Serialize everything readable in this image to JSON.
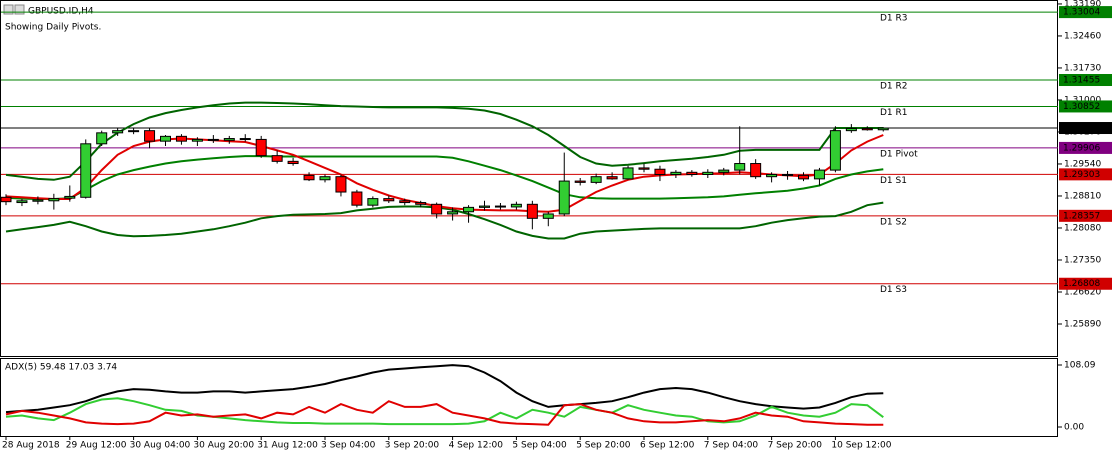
{
  "chart_data": [
    {
      "type": "candlestick",
      "title": "GBPUSD.ID,H4",
      "subtitle": "Showing Daily Pivots.",
      "up_color": "#32cd32",
      "down_color": "#ff0000",
      "candles": [
        [
          1.2878,
          1.2885,
          1.286,
          1.2868
        ],
        [
          1.2866,
          1.2874,
          1.2858,
          1.287
        ],
        [
          1.2869,
          1.288,
          1.2862,
          1.2872
        ],
        [
          1.287,
          1.2886,
          1.285,
          1.2875
        ],
        [
          1.2876,
          1.2905,
          1.2868,
          1.288
        ],
        [
          1.2878,
          1.301,
          1.2875,
          1.3
        ],
        [
          1.3,
          1.303,
          1.2995,
          1.3025
        ],
        [
          1.3025,
          1.3035,
          1.3018,
          1.303
        ],
        [
          1.3028,
          1.3036,
          1.3022,
          1.303
        ],
        [
          1.303,
          1.3035,
          1.299,
          1.3006
        ],
        [
          1.3006,
          1.302,
          1.2995,
          1.3017
        ],
        [
          1.3017,
          1.3022,
          1.2998,
          1.3006
        ],
        [
          1.3006,
          1.3015,
          1.2995,
          1.301
        ],
        [
          1.301,
          1.302,
          1.3002,
          1.3008
        ],
        [
          1.3008,
          1.3018,
          1.3,
          1.3012
        ],
        [
          1.3012,
          1.3022,
          1.3005,
          1.301
        ],
        [
          1.301,
          1.3018,
          1.2968,
          1.2973
        ],
        [
          1.2973,
          1.2985,
          1.2955,
          1.296
        ],
        [
          1.296,
          1.2968,
          1.295,
          1.2955
        ],
        [
          1.2928,
          1.2935,
          1.2915,
          1.2918
        ],
        [
          1.2918,
          1.293,
          1.2912,
          1.2925
        ],
        [
          1.2925,
          1.293,
          1.288,
          1.289
        ],
        [
          1.289,
          1.2895,
          1.2855,
          1.286
        ],
        [
          1.286,
          1.288,
          1.2855,
          1.2875
        ],
        [
          1.2875,
          1.2882,
          1.2865,
          1.287
        ],
        [
          1.287,
          1.2875,
          1.286,
          1.2866
        ],
        [
          1.2866,
          1.287,
          1.2855,
          1.2862
        ],
        [
          1.2862,
          1.2866,
          1.283,
          1.284
        ],
        [
          1.284,
          1.2855,
          1.2825,
          1.2845
        ],
        [
          1.2845,
          1.286,
          1.282,
          1.2855
        ],
        [
          1.2855,
          1.287,
          1.2848,
          1.2858
        ],
        [
          1.2858,
          1.2865,
          1.285,
          1.2856
        ],
        [
          1.2856,
          1.2868,
          1.285,
          1.2862
        ],
        [
          1.2862,
          1.287,
          1.2805,
          1.283
        ],
        [
          1.283,
          1.2845,
          1.2812,
          1.284
        ],
        [
          1.284,
          1.298,
          1.2835,
          1.2915
        ],
        [
          1.2915,
          1.2922,
          1.2905,
          1.2912
        ],
        [
          1.2912,
          1.2932,
          1.2908,
          1.2925
        ],
        [
          1.2925,
          1.2935,
          1.2918,
          1.292
        ],
        [
          1.292,
          1.295,
          1.2918,
          1.2945
        ],
        [
          1.2945,
          1.2955,
          1.2935,
          1.2942
        ],
        [
          1.2942,
          1.295,
          1.2915,
          1.293
        ],
        [
          1.293,
          1.294,
          1.2922,
          1.2935
        ],
        [
          1.2935,
          1.294,
          1.2925,
          1.293
        ],
        [
          1.293,
          1.2942,
          1.2922,
          1.2935
        ],
        [
          1.2935,
          1.2945,
          1.2928,
          1.294
        ],
        [
          1.294,
          1.304,
          1.293,
          1.2955
        ],
        [
          1.2955,
          1.2965,
          1.292,
          1.2925
        ],
        [
          1.2925,
          1.2935,
          1.2912,
          1.293
        ],
        [
          1.293,
          1.2938,
          1.2918,
          1.2928
        ],
        [
          1.2928,
          1.2935,
          1.2915,
          1.292
        ],
        [
          1.292,
          1.2945,
          1.2905,
          1.294
        ],
        [
          1.294,
          1.304,
          1.2935,
          1.303
        ],
        [
          1.303,
          1.3045,
          1.3025,
          1.3035
        ],
        [
          1.3035,
          1.304,
          1.303,
          1.3032
        ],
        [
          1.3032,
          1.3038,
          1.3028,
          1.3036
        ]
      ],
      "series": [
        {
          "color": "#006400",
          "values": [
            1.2929,
            1.2925,
            1.292,
            1.2918,
            1.2925,
            1.296,
            1.3,
            1.3025,
            1.3045,
            1.306,
            1.307,
            1.3077,
            1.3083,
            1.3088,
            1.3092,
            1.3094,
            1.3094,
            1.3093,
            1.3092,
            1.309,
            1.3088,
            1.3086,
            1.3085,
            1.3084,
            1.3083,
            1.3083,
            1.3083,
            1.3083,
            1.3082,
            1.308,
            1.3076,
            1.3068,
            1.3055,
            1.304,
            1.302,
            1.2995,
            1.297,
            1.2955,
            1.295,
            1.2952,
            1.2956,
            1.296,
            1.2963,
            1.2966,
            1.297,
            1.2975,
            1.2984,
            1.2986,
            1.2986,
            1.2986,
            1.2986,
            1.2986,
            1.3036,
            1.3036,
            1.3036,
            1.3036
          ]
        },
        {
          "color": "#008000",
          "values": [
            1.2877,
            1.2875,
            1.2874,
            1.2874,
            1.2876,
            1.2895,
            1.2915,
            1.293,
            1.294,
            1.2948,
            1.2955,
            1.296,
            1.2964,
            1.2967,
            1.297,
            1.2972,
            1.2972,
            1.2971,
            1.2971,
            1.2971,
            1.2971,
            1.2971,
            1.2971,
            1.2971,
            1.2971,
            1.2971,
            1.2971,
            1.2971,
            1.2968,
            1.296,
            1.295,
            1.294,
            1.2928,
            1.2915,
            1.29,
            1.2885,
            1.2878,
            1.2876,
            1.2875,
            1.2875,
            1.2875,
            1.2875,
            1.2876,
            1.2877,
            1.2878,
            1.288,
            1.2884,
            1.2887,
            1.289,
            1.2893,
            1.2898,
            1.2905,
            1.292,
            1.293,
            1.2937,
            1.2942
          ]
        },
        {
          "color": "#006400",
          "values": [
            1.28,
            1.2805,
            1.281,
            1.2815,
            1.2822,
            1.2812,
            1.28,
            1.2792,
            1.2789,
            1.279,
            1.2792,
            1.2795,
            1.28,
            1.2805,
            1.2812,
            1.282,
            1.283,
            1.2835,
            1.2838,
            1.2839,
            1.284,
            1.2842,
            1.2848,
            1.2852,
            1.2856,
            1.2857,
            1.2857,
            1.2855,
            1.285,
            1.284,
            1.2828,
            1.2815,
            1.28,
            1.279,
            1.2784,
            1.2784,
            1.2795,
            1.28,
            1.2802,
            1.2804,
            1.2806,
            1.2807,
            1.2807,
            1.2807,
            1.2807,
            1.2807,
            1.2807,
            1.2812,
            1.282,
            1.2826,
            1.283,
            1.2834,
            1.2835,
            1.2845,
            1.286,
            1.2866
          ]
        },
        {
          "color": "#e00000",
          "values": [
            1.288,
            1.2878,
            1.2876,
            1.2874,
            1.2874,
            1.29,
            1.294,
            1.2975,
            1.2995,
            1.3005,
            1.301,
            1.3012,
            1.301,
            1.3008,
            1.3006,
            1.3004,
            1.2995,
            1.2985,
            1.2975,
            1.296,
            1.2945,
            1.293,
            1.291,
            1.2895,
            1.2882,
            1.2872,
            1.2865,
            1.2858,
            1.2853,
            1.285,
            1.2849,
            1.2848,
            1.2848,
            1.2846,
            1.2845,
            1.285,
            1.287,
            1.289,
            1.2905,
            1.2918,
            1.2925,
            1.2928,
            1.293,
            1.2931,
            1.2932,
            1.2933,
            1.2935,
            1.2933,
            1.293,
            1.2928,
            1.2926,
            1.293,
            1.2955,
            1.2985,
            1.3005,
            1.302
          ]
        }
      ],
      "pivots": [
        {
          "name": "D1 R3",
          "value": 1.33004,
          "color": "#008000"
        },
        {
          "name": "D1 R2",
          "value": 1.31455,
          "color": "#008000"
        },
        {
          "name": "D1 R1",
          "value": 1.30852,
          "color": "#008000"
        },
        {
          "name": "D1 Pivot",
          "value": 1.29906,
          "color": "#800080"
        },
        {
          "name": "D1 S1",
          "value": 1.29303,
          "color": "#d00000"
        },
        {
          "name": "D1 S2",
          "value": 1.28357,
          "color": "#d00000"
        },
        {
          "name": "D1 S3",
          "value": 1.26808,
          "color": "#d00000"
        }
      ],
      "current_price": {
        "value": 1.3036,
        "label": "1.30360"
      },
      "ylim": [
        1.2516,
        1.3328
      ],
      "yticks": [
        {
          "value": 1.3319,
          "label": "1.33190"
        },
        {
          "value": 1.3246,
          "label": "1.32460"
        },
        {
          "value": 1.3173,
          "label": "1.31730"
        },
        {
          "value": 1.31,
          "label": "1.31000"
        },
        {
          "value": 1.3027,
          "label": "1.30270"
        },
        {
          "value": 1.2954,
          "label": "1.29540"
        },
        {
          "value": 1.2881,
          "label": "1.28810"
        },
        {
          "value": 1.2808,
          "label": "1.28080"
        },
        {
          "value": 1.2735,
          "label": "1.27350"
        },
        {
          "value": 1.2662,
          "label": "1.26620"
        },
        {
          "value": 1.2589,
          "label": "1.25890"
        }
      ]
    },
    {
      "type": "line",
      "title": "ADX(5) 59.48 17.03 3.74",
      "categories": [
        "28 Aug 2018",
        null,
        null,
        null,
        "29 Aug 12:00",
        null,
        null,
        null,
        "30 Aug 04:00",
        null,
        null,
        null,
        "30 Aug 20:00",
        null,
        null,
        null,
        "31 Aug 12:00",
        null,
        null,
        null,
        "3 Sep 04:00",
        null,
        null,
        null,
        "3 Sep 20:00",
        null,
        null,
        null,
        "4 Sep 12:00",
        null,
        null,
        null,
        "5 Sep 04:00",
        null,
        null,
        null,
        "5 Sep 20:00",
        null,
        null,
        null,
        "6 Sep 12:00",
        null,
        null,
        null,
        "7 Sep 04:00",
        null,
        null,
        null,
        "7 Sep 20:00",
        null,
        null,
        null,
        "10 Sep 12:00",
        null,
        null,
        null
      ],
      "series": [
        {
          "color": "#000000",
          "values": [
            26,
            28,
            30,
            34,
            38,
            45,
            55,
            62,
            66,
            65,
            62,
            60,
            60,
            62,
            62,
            60,
            62,
            64,
            66,
            70,
            75,
            82,
            88,
            95,
            100,
            102,
            104,
            106,
            108,
            106,
            95,
            80,
            60,
            45,
            35,
            38,
            40,
            42,
            45,
            52,
            60,
            66,
            68,
            66,
            60,
            52,
            45,
            40,
            36,
            34,
            32,
            34,
            42,
            52,
            58,
            59
          ]
        },
        {
          "color": "#32cd32",
          "values": [
            18,
            20,
            15,
            12,
            25,
            40,
            48,
            50,
            45,
            38,
            30,
            28,
            20,
            18,
            15,
            12,
            10,
            8,
            7,
            7,
            6,
            6,
            6,
            6,
            5,
            5,
            5,
            5,
            5,
            6,
            10,
            25,
            15,
            30,
            25,
            18,
            35,
            30,
            25,
            38,
            30,
            25,
            20,
            18,
            10,
            8,
            10,
            20,
            35,
            25,
            20,
            18,
            25,
            40,
            38,
            17
          ]
        },
        {
          "color": "#e00000",
          "values": [
            22,
            28,
            25,
            20,
            15,
            8,
            6,
            5,
            6,
            10,
            25,
            20,
            22,
            18,
            20,
            22,
            15,
            25,
            22,
            35,
            25,
            40,
            30,
            25,
            45,
            35,
            35,
            40,
            25,
            20,
            15,
            8,
            6,
            5,
            4,
            38,
            40,
            30,
            25,
            15,
            10,
            8,
            8,
            10,
            12,
            10,
            15,
            25,
            20,
            18,
            10,
            8,
            6,
            5,
            4,
            4
          ]
        }
      ],
      "ylim": [
        -15.7,
        120.3
      ],
      "yticks": [
        {
          "value": 108.09,
          "label": "108.09"
        },
        {
          "value": 0,
          "label": "0.00"
        }
      ]
    }
  ]
}
